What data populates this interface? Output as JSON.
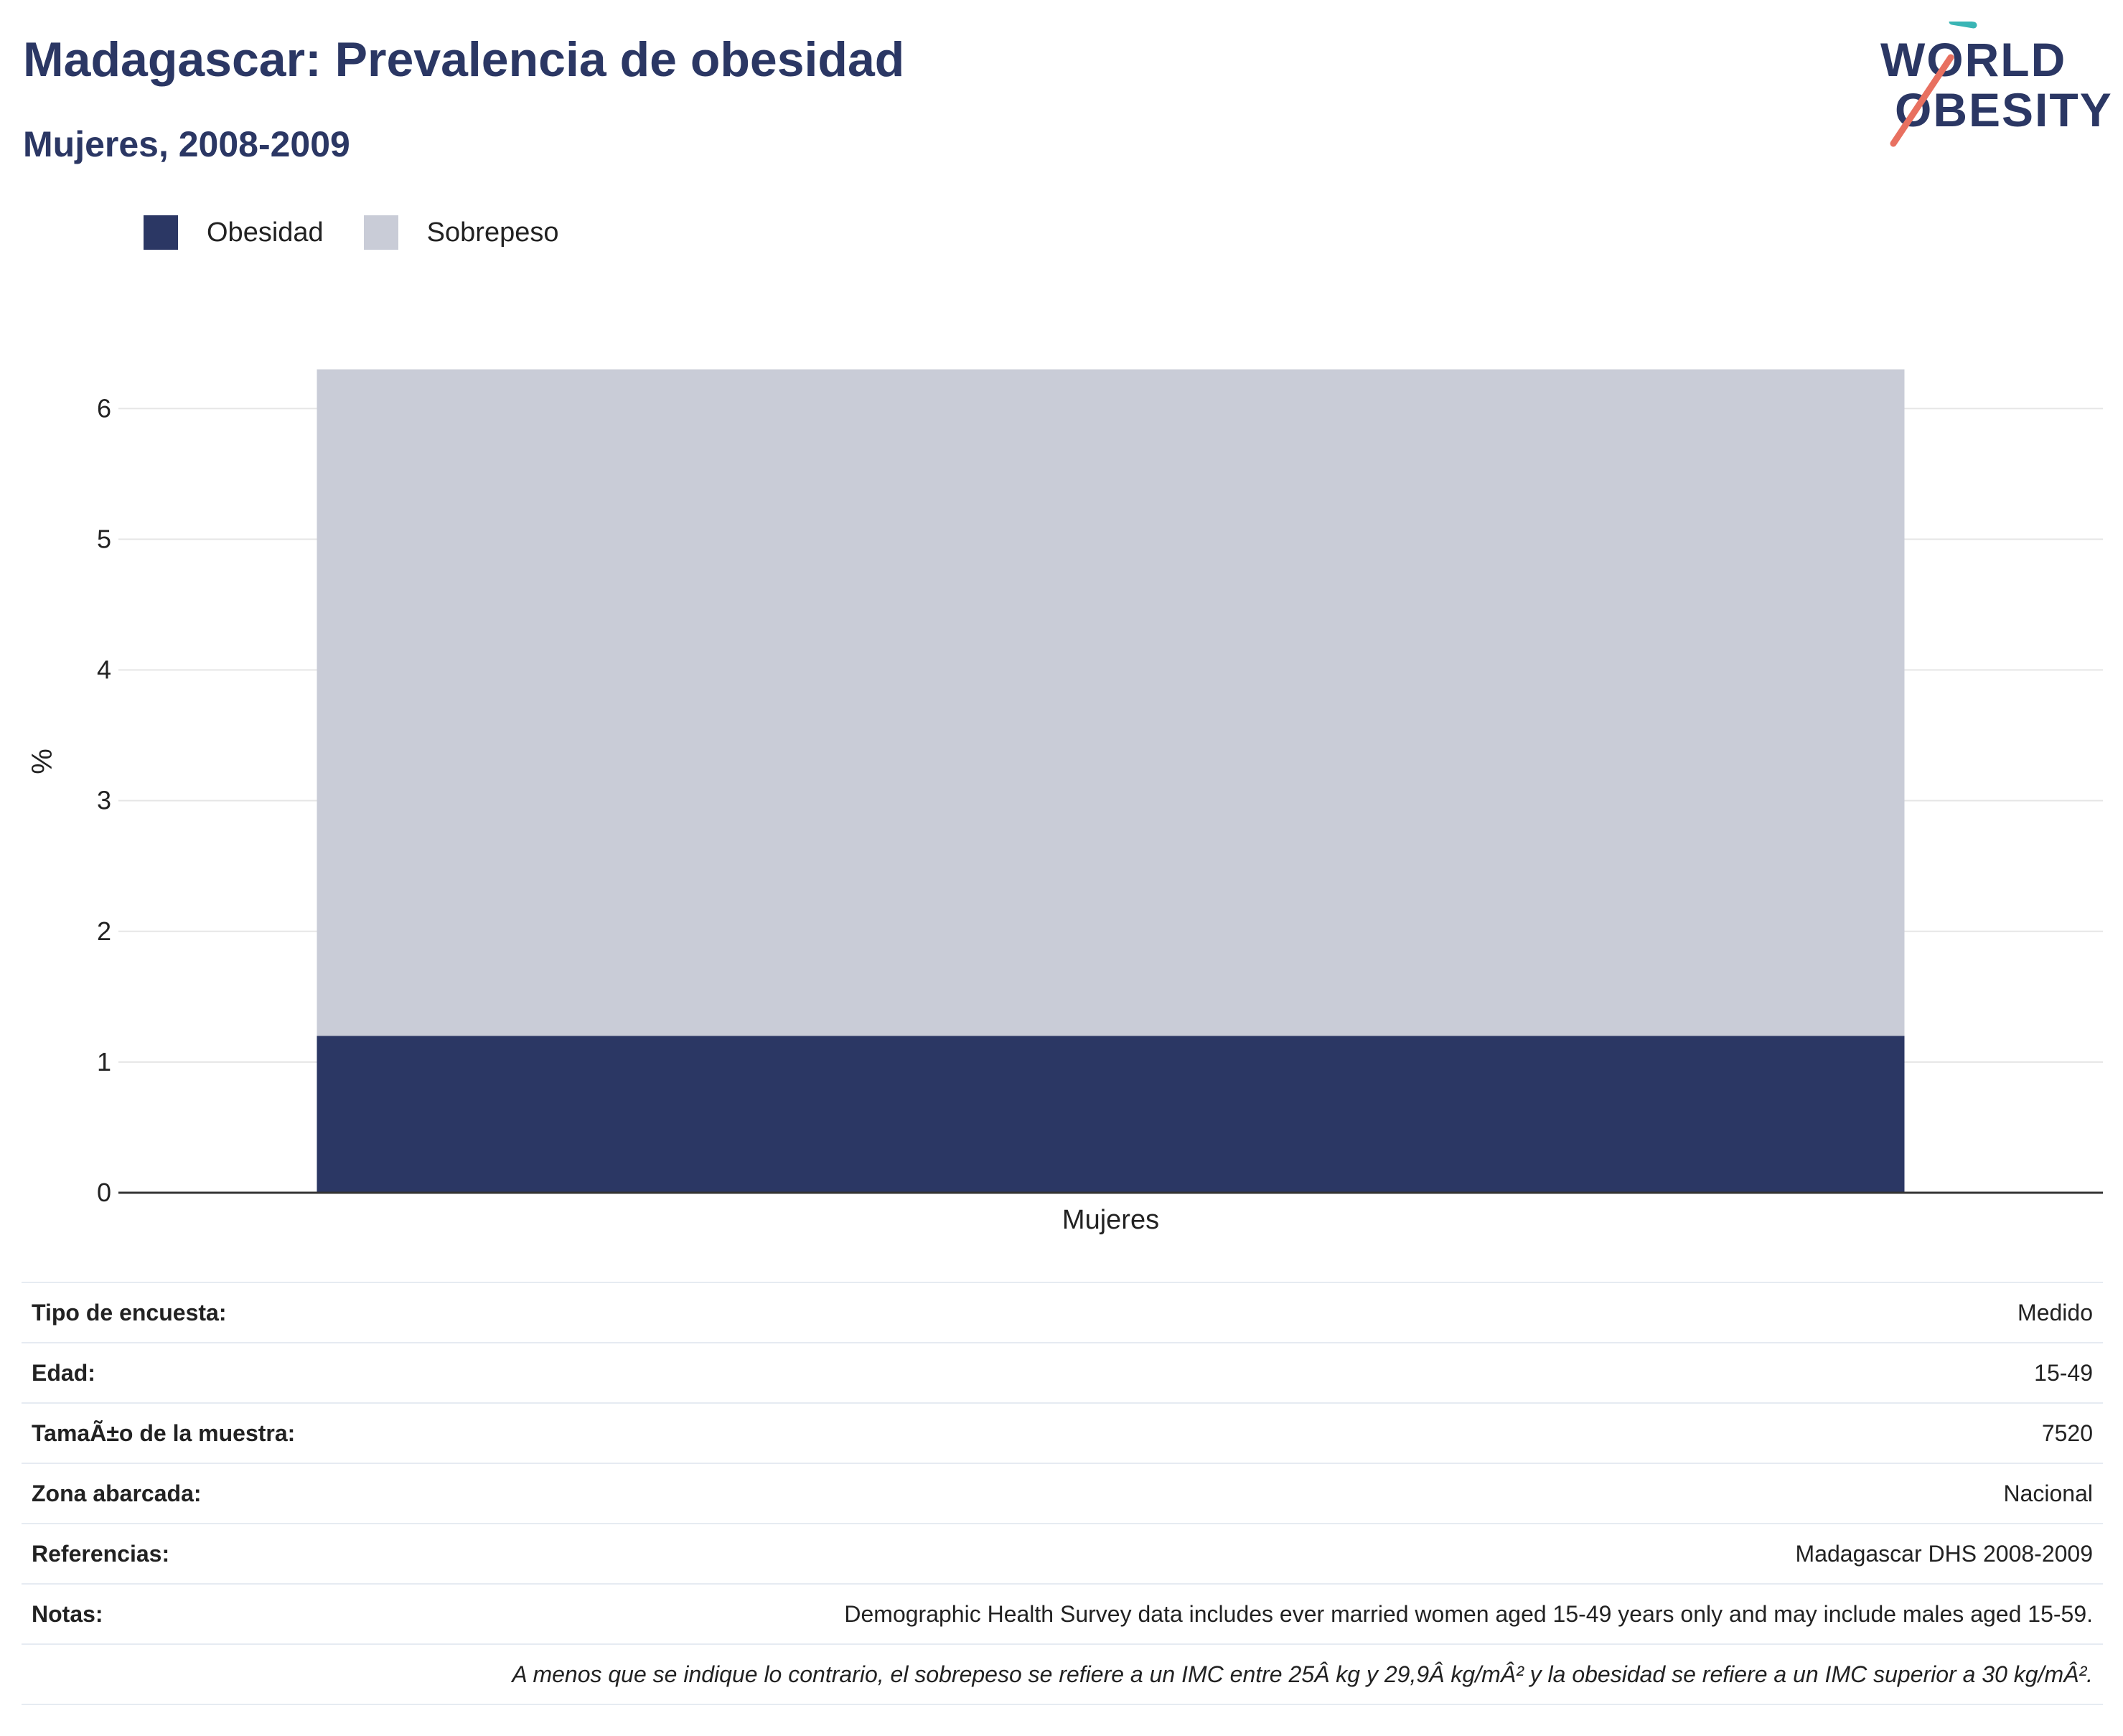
{
  "title": "Madagascar: Prevalencia de obesidad",
  "subtitle": "Mujeres, 2008-2009",
  "logo": {
    "line1": "WORLD",
    "line2": "OBESITY"
  },
  "colors": {
    "obesidad": "#2b3764",
    "sobrepeso": "#c9ccd7",
    "accent_teal": "#3ab5b5",
    "accent_coral": "#e87060"
  },
  "legend": [
    {
      "label": "Obesidad",
      "color": "#2b3764"
    },
    {
      "label": "Sobrepeso",
      "color": "#c9ccd7"
    }
  ],
  "chart_data": {
    "type": "bar",
    "stacked": true,
    "categories": [
      "Mujeres"
    ],
    "series": [
      {
        "name": "Obesidad",
        "values": [
          1.2
        ],
        "color": "#2b3764"
      },
      {
        "name": "Sobrepeso",
        "values": [
          5.1
        ],
        "color": "#c9ccd7"
      }
    ],
    "ylabel": "%",
    "ylim": [
      0,
      6.6
    ],
    "yticks": [
      0,
      1,
      2,
      3,
      4,
      5,
      6
    ],
    "grid": true,
    "legend_position": "top-left"
  },
  "info_rows": [
    {
      "key": "Tipo de encuesta:",
      "value": "Medido"
    },
    {
      "key": "Edad:",
      "value": "15-49"
    },
    {
      "key": "TamaÃ±o de la muestra:",
      "value": "7520"
    },
    {
      "key": "Zona abarcada:",
      "value": "Nacional"
    },
    {
      "key": "Referencias:",
      "value": "Madagascar DHS 2008-2009"
    },
    {
      "key": "Notas:",
      "value": "Demographic Health Survey data includes ever married women aged 15-49 years only and may include males aged 15-59."
    }
  ],
  "footnote": "A menos que se indique lo contrario, el sobrepeso se refiere a un IMC entre 25Â kg y 29,9Â kg/mÂ² y la obesidad se refiere a un IMC superior a 30 kg/mÂ²."
}
